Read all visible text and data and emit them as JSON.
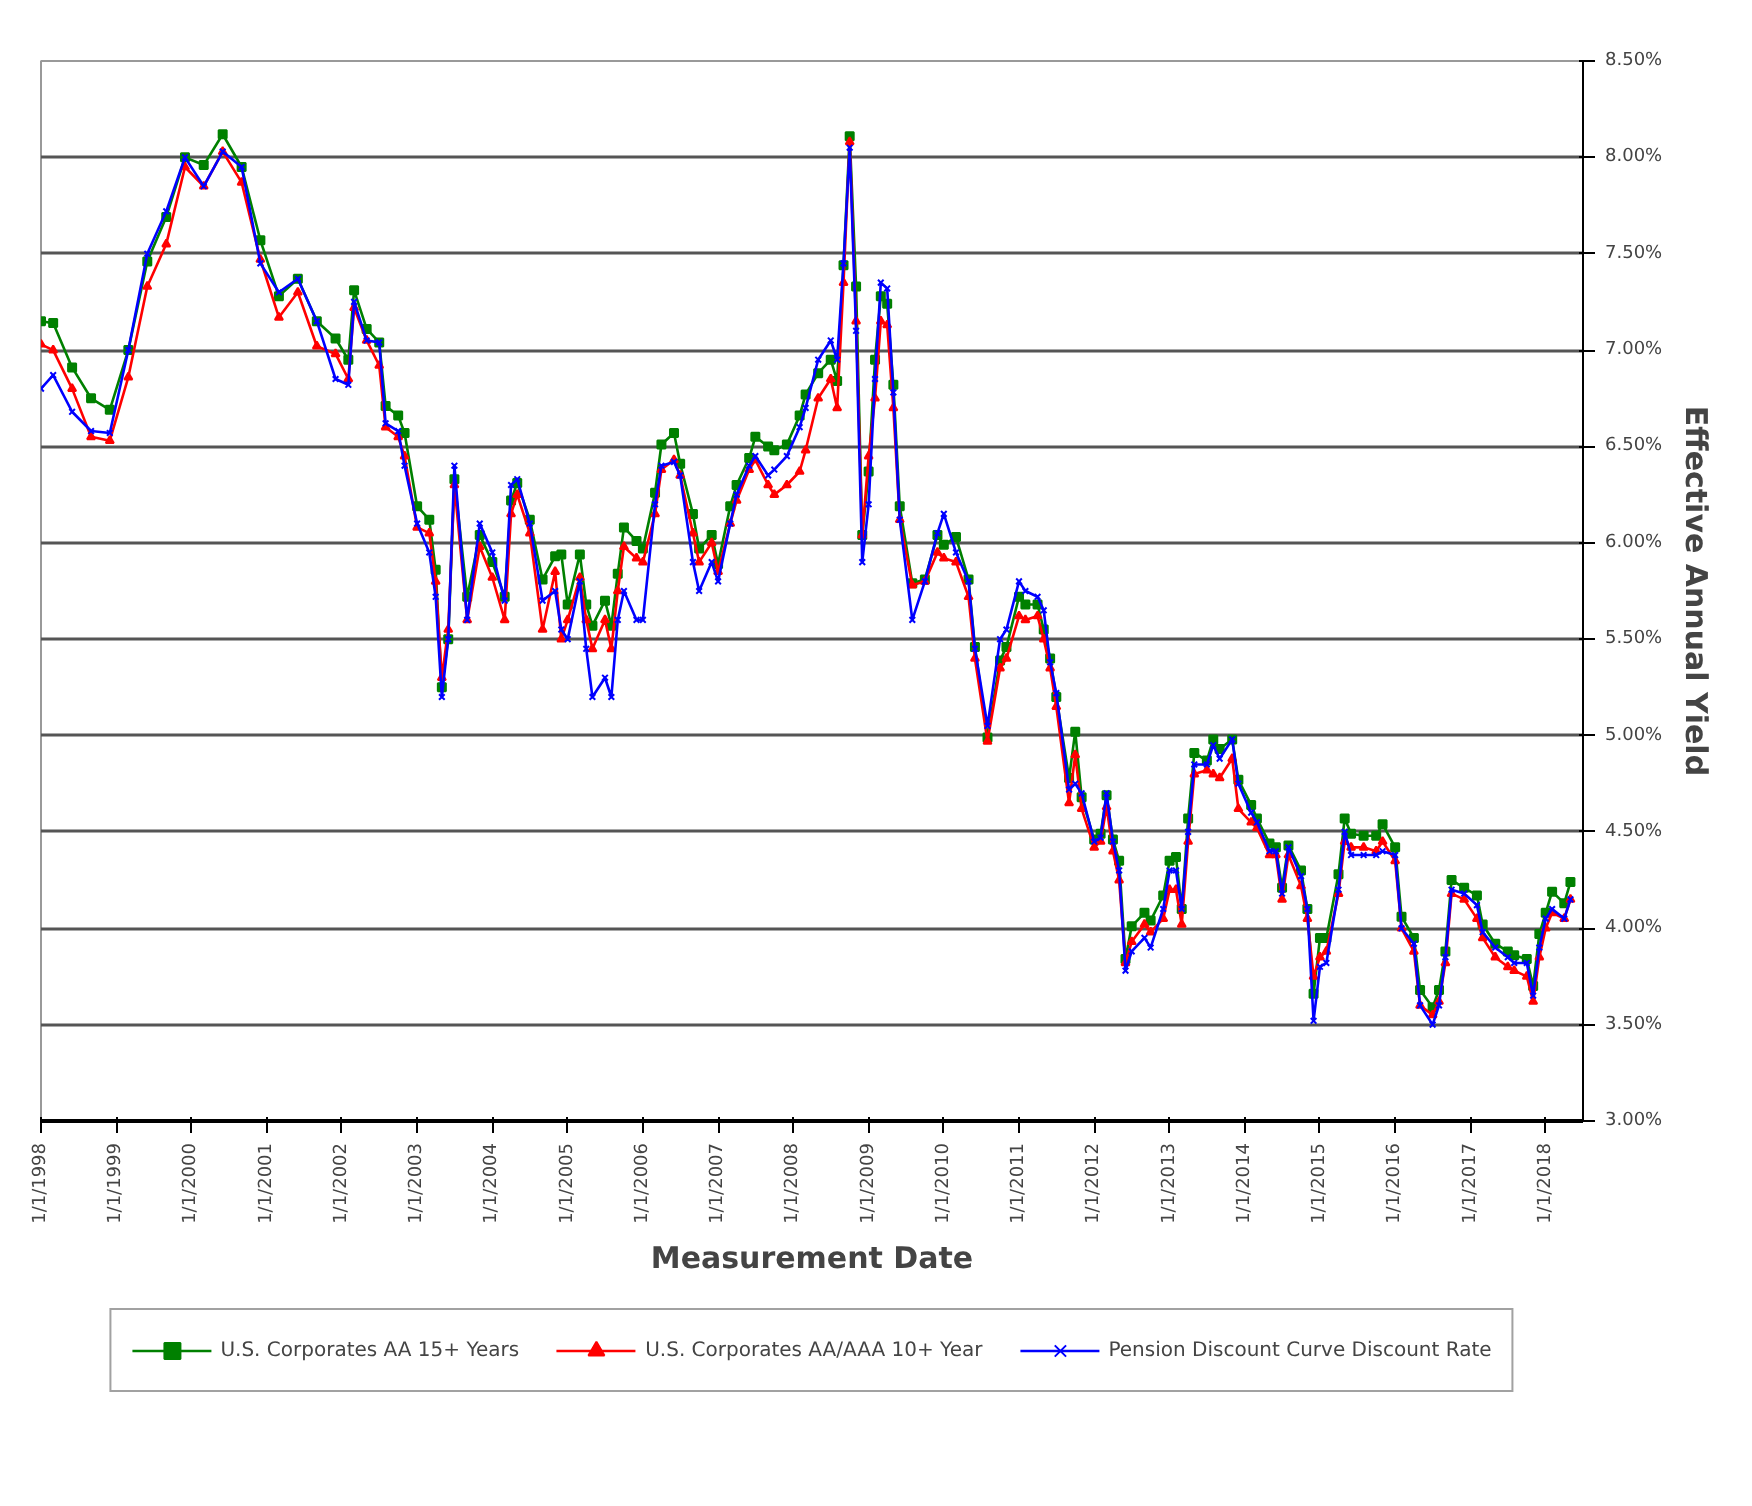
{
  "chart_data": {
    "type": "line",
    "xlabel": "Measurement Date",
    "ylabel": "Effective Annual Yield",
    "x": [
      "1998-01",
      "1998-03",
      "1998-06",
      "1998-09",
      "1998-12",
      "1999-03",
      "1999-06",
      "1999-09",
      "1999-12",
      "2000-03",
      "2000-06",
      "2000-09",
      "2000-12",
      "2001-03",
      "2001-06",
      "2001-09",
      "2001-12",
      "2002-02",
      "2002-03",
      "2002-05",
      "2002-07",
      "2002-08",
      "2002-10",
      "2002-11",
      "2003-01",
      "2003-03",
      "2003-04",
      "2003-05",
      "2003-06",
      "2003-07",
      "2003-09",
      "2003-11",
      "2004-01",
      "2004-03",
      "2004-04",
      "2004-05",
      "2004-07",
      "2004-09",
      "2004-11",
      "2004-12",
      "2005-01",
      "2005-03",
      "2005-04",
      "2005-05",
      "2005-07",
      "2005-08",
      "2005-09",
      "2005-10",
      "2005-12",
      "2006-01",
      "2006-03",
      "2006-04",
      "2006-06",
      "2006-07",
      "2006-09",
      "2006-10",
      "2006-12",
      "2007-01",
      "2007-03",
      "2007-04",
      "2007-06",
      "2007-07",
      "2007-09",
      "2007-10",
      "2007-12",
      "2008-02",
      "2008-03",
      "2008-05",
      "2008-07",
      "2008-08",
      "2008-09",
      "2008-10",
      "2008-11",
      "2008-12",
      "2009-01",
      "2009-02",
      "2009-03",
      "2009-04",
      "2009-05",
      "2009-06",
      "2009-08",
      "2009-10",
      "2009-12",
      "2010-01",
      "2010-03",
      "2010-05",
      "2010-06",
      "2010-08",
      "2010-10",
      "2010-11",
      "2011-01",
      "2011-02",
      "2011-04",
      "2011-05",
      "2011-06",
      "2011-07",
      "2011-09",
      "2011-10",
      "2011-11",
      "2012-01",
      "2012-02",
      "2012-03",
      "2012-04",
      "2012-05",
      "2012-06",
      "2012-07",
      "2012-09",
      "2012-10",
      "2012-12",
      "2013-01",
      "2013-02",
      "2013-03",
      "2013-04",
      "2013-05",
      "2013-07",
      "2013-08",
      "2013-09",
      "2013-11",
      "2013-12",
      "2014-02",
      "2014-03",
      "2014-05",
      "2014-06",
      "2014-07",
      "2014-08",
      "2014-10",
      "2014-11",
      "2014-12",
      "2015-01",
      "2015-02",
      "2015-04",
      "2015-05",
      "2015-06",
      "2015-08",
      "2015-10",
      "2015-11",
      "2016-01",
      "2016-02",
      "2016-04",
      "2016-05",
      "2016-07",
      "2016-08",
      "2016-09",
      "2016-10",
      "2016-12",
      "2017-02",
      "2017-03",
      "2017-05",
      "2017-07",
      "2017-08",
      "2017-10",
      "2017-11",
      "2017-12",
      "2018-01",
      "2018-02",
      "2018-04",
      "2018-05"
    ],
    "series": [
      {
        "name": "U.S. Corporates AA 15+ Years",
        "color": "#008000",
        "marker": "square",
        "values": [
          7.15,
          7.14,
          6.91,
          6.75,
          6.69,
          7.0,
          7.46,
          7.69,
          8.0,
          7.96,
          8.12,
          7.95,
          7.57,
          7.28,
          7.37,
          7.15,
          7.06,
          6.95,
          7.31,
          7.11,
          7.04,
          6.71,
          6.66,
          6.57,
          6.19,
          6.12,
          5.86,
          5.25,
          5.5,
          6.33,
          5.72,
          6.04,
          5.9,
          5.72,
          6.22,
          6.31,
          6.12,
          5.81,
          5.93,
          5.94,
          5.68,
          5.94,
          5.68,
          5.57,
          5.7,
          5.57,
          5.84,
          6.08,
          6.01,
          5.97,
          6.26,
          6.51,
          6.57,
          6.41,
          6.15,
          5.97,
          6.04,
          5.89,
          6.19,
          6.3,
          6.44,
          6.55,
          6.5,
          6.48,
          6.51,
          6.66,
          6.77,
          6.88,
          6.95,
          6.84,
          7.44,
          8.11,
          7.33,
          6.04,
          6.37,
          6.95,
          7.28,
          7.24,
          6.82,
          6.19,
          5.79,
          5.81,
          6.04,
          5.99,
          6.03,
          5.81,
          5.46,
          4.99,
          5.39,
          5.46,
          5.72,
          5.68,
          5.68,
          5.55,
          5.4,
          5.2,
          4.78,
          5.02,
          4.68,
          4.46,
          4.49,
          4.69,
          4.46,
          4.35,
          3.84,
          4.01,
          4.08,
          4.04,
          4.17,
          4.35,
          4.37,
          4.1,
          4.57,
          4.91,
          4.87,
          4.98,
          4.93,
          4.98,
          4.77,
          4.64,
          4.57,
          4.44,
          4.42,
          4.21,
          4.43,
          4.3,
          4.1,
          3.66,
          3.95,
          3.95,
          4.28,
          4.57,
          4.49,
          4.48,
          4.48,
          4.54,
          4.42,
          4.06,
          3.95,
          3.68,
          3.59,
          3.68,
          3.88,
          4.25,
          4.21,
          4.17,
          4.02,
          3.92,
          3.88,
          3.86,
          3.84,
          3.7,
          3.97,
          4.08,
          4.19,
          4.13,
          4.24
        ]
      },
      {
        "name": "U.S. Corporates AA/AAA 10+ Year",
        "color": "#ff0000",
        "marker": "triangle",
        "values": [
          7.03,
          7.0,
          6.8,
          6.55,
          6.53,
          6.86,
          7.33,
          7.55,
          7.95,
          7.85,
          8.03,
          7.87,
          7.47,
          7.17,
          7.3,
          7.02,
          6.98,
          6.85,
          7.22,
          7.05,
          6.92,
          6.6,
          6.55,
          6.45,
          6.08,
          6.05,
          5.8,
          5.3,
          5.55,
          6.3,
          5.6,
          5.98,
          5.82,
          5.6,
          6.15,
          6.25,
          6.05,
          5.55,
          5.85,
          5.5,
          5.6,
          5.82,
          5.6,
          5.45,
          5.6,
          5.45,
          5.75,
          5.98,
          5.92,
          5.9,
          6.15,
          6.38,
          6.43,
          6.35,
          6.05,
          5.9,
          6.0,
          5.85,
          6.1,
          6.22,
          6.38,
          6.43,
          6.3,
          6.25,
          6.3,
          6.37,
          6.48,
          6.75,
          6.85,
          6.7,
          7.35,
          8.08,
          7.15,
          6.04,
          6.45,
          6.75,
          7.15,
          7.13,
          6.7,
          6.12,
          5.78,
          5.8,
          5.95,
          5.92,
          5.9,
          5.72,
          5.4,
          4.97,
          5.35,
          5.4,
          5.62,
          5.6,
          5.62,
          5.5,
          5.35,
          5.15,
          4.65,
          4.9,
          4.62,
          4.42,
          4.45,
          4.63,
          4.4,
          4.25,
          3.82,
          3.93,
          4.02,
          3.98,
          4.05,
          4.2,
          4.2,
          4.02,
          4.45,
          4.8,
          4.82,
          4.8,
          4.78,
          4.88,
          4.62,
          4.55,
          4.52,
          4.38,
          4.38,
          4.15,
          4.38,
          4.22,
          4.05,
          3.75,
          3.85,
          3.88,
          4.18,
          4.45,
          4.42,
          4.42,
          4.4,
          4.45,
          4.35,
          4.0,
          3.88,
          3.6,
          3.55,
          3.62,
          3.82,
          4.18,
          4.15,
          4.05,
          3.95,
          3.85,
          3.8,
          3.78,
          3.75,
          3.62,
          3.85,
          4.0,
          4.08,
          4.05,
          4.15
        ]
      },
      {
        "name": "Pension Discount Curve Discount Rate",
        "color": "#0000ff",
        "marker": "cross",
        "values": [
          6.8,
          6.87,
          6.68,
          6.58,
          6.57,
          7.0,
          7.5,
          7.72,
          8.0,
          7.85,
          8.03,
          7.95,
          7.45,
          7.3,
          7.37,
          7.15,
          6.85,
          6.82,
          7.25,
          7.05,
          7.04,
          6.62,
          6.58,
          6.4,
          6.1,
          5.95,
          5.72,
          5.2,
          5.5,
          6.4,
          5.6,
          6.1,
          5.95,
          5.7,
          6.3,
          6.33,
          6.1,
          5.7,
          5.75,
          5.55,
          5.5,
          5.8,
          5.45,
          5.2,
          5.3,
          5.2,
          5.6,
          5.75,
          5.6,
          5.6,
          6.2,
          6.4,
          6.42,
          6.35,
          5.9,
          5.75,
          5.9,
          5.8,
          6.1,
          6.25,
          6.4,
          6.45,
          6.35,
          6.38,
          6.45,
          6.6,
          6.7,
          6.95,
          7.05,
          6.95,
          7.45,
          8.05,
          7.1,
          5.9,
          6.2,
          6.85,
          7.35,
          7.32,
          6.78,
          6.12,
          5.6,
          5.8,
          6.05,
          6.15,
          5.95,
          5.8,
          5.45,
          5.05,
          5.5,
          5.55,
          5.8,
          5.75,
          5.72,
          5.65,
          5.38,
          5.22,
          4.72,
          4.75,
          4.7,
          4.45,
          4.47,
          4.7,
          4.45,
          4.3,
          3.78,
          3.88,
          3.95,
          3.9,
          4.1,
          4.3,
          4.3,
          4.1,
          4.5,
          4.85,
          4.85,
          4.95,
          4.88,
          4.98,
          4.75,
          4.6,
          4.55,
          4.4,
          4.4,
          4.18,
          4.42,
          4.27,
          4.1,
          3.52,
          3.8,
          3.82,
          4.2,
          4.5,
          4.38,
          4.38,
          4.38,
          4.4,
          4.38,
          4.0,
          3.92,
          3.6,
          3.5,
          3.6,
          3.85,
          4.2,
          4.18,
          4.12,
          3.98,
          3.9,
          3.85,
          3.82,
          3.82,
          3.65,
          3.9,
          4.05,
          4.1,
          4.05,
          4.15
        ]
      }
    ],
    "xlim": [
      "1998-01",
      "2018-07"
    ],
    "xticks": [
      {
        "value": "1998-01-01",
        "label": "1/1/1998"
      },
      {
        "value": "1999-01-01",
        "label": "1/1/1999"
      },
      {
        "value": "2000-01-01",
        "label": "1/1/2000"
      },
      {
        "value": "2001-01-01",
        "label": "1/1/2001"
      },
      {
        "value": "2002-01-01",
        "label": "1/1/2002"
      },
      {
        "value": "2003-01-01",
        "label": "1/1/2003"
      },
      {
        "value": "2004-01-01",
        "label": "1/1/2004"
      },
      {
        "value": "2005-01-01",
        "label": "1/1/2005"
      },
      {
        "value": "2006-01-01",
        "label": "1/1/2006"
      },
      {
        "value": "2007-01-01",
        "label": "1/1/2007"
      },
      {
        "value": "2008-01-01",
        "label": "1/1/2008"
      },
      {
        "value": "2009-01-01",
        "label": "1/1/2009"
      },
      {
        "value": "2010-01-01",
        "label": "1/1/2010"
      },
      {
        "value": "2011-01-01",
        "label": "1/1/2011"
      },
      {
        "value": "2012-01-01",
        "label": "1/1/2012"
      },
      {
        "value": "2013-01-01",
        "label": "1/1/2013"
      },
      {
        "value": "2014-01-01",
        "label": "1/1/2014"
      },
      {
        "value": "2015-01-01",
        "label": "1/1/2015"
      },
      {
        "value": "2016-01-01",
        "label": "1/1/2016"
      },
      {
        "value": "2017-01-01",
        "label": "1/1/2017"
      },
      {
        "value": "2018-01-01",
        "label": "1/1/2018"
      }
    ],
    "ylim": [
      3.0,
      8.5
    ],
    "yticks": [
      {
        "value": 3.0,
        "label": "3.00%"
      },
      {
        "value": 3.5,
        "label": "3.50%"
      },
      {
        "value": 4.0,
        "label": "4.00%"
      },
      {
        "value": 4.5,
        "label": "4.50%"
      },
      {
        "value": 5.0,
        "label": "5.00%"
      },
      {
        "value": 5.5,
        "label": "5.50%"
      },
      {
        "value": 6.0,
        "label": "6.00%"
      },
      {
        "value": 6.5,
        "label": "6.50%"
      },
      {
        "value": 7.0,
        "label": "7.00%"
      },
      {
        "value": 7.5,
        "label": "7.50%"
      },
      {
        "value": 8.0,
        "label": "8.00%"
      },
      {
        "value": 8.5,
        "label": "8.50%"
      }
    ],
    "grid": "y",
    "legend": "bottom",
    "line_style": "solid"
  }
}
